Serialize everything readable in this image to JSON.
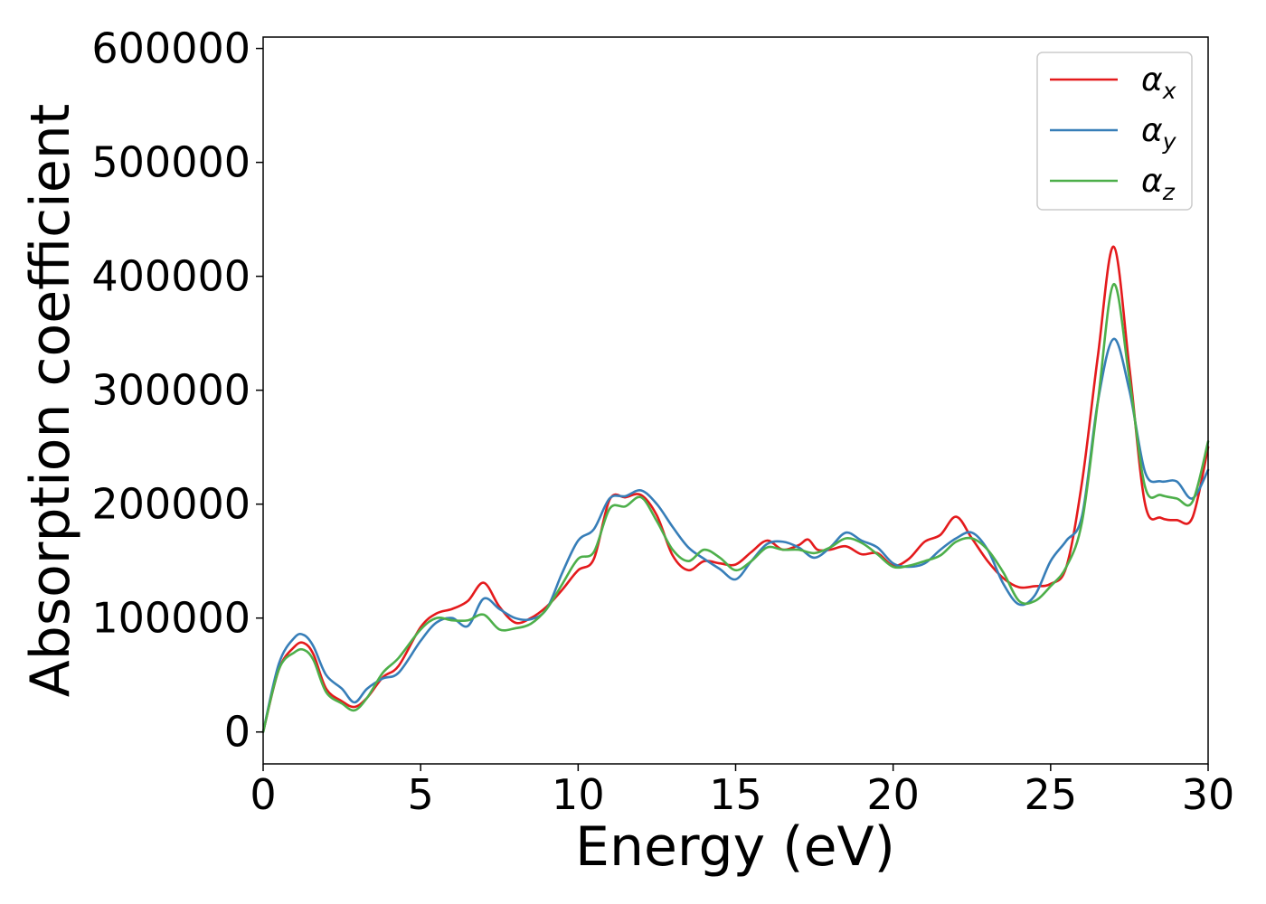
{
  "chart_data": {
    "type": "line",
    "title": "",
    "xlabel": "Energy (eV)",
    "ylabel": "Absorption coefficient",
    "xlim": [
      0,
      30
    ],
    "ylim": [
      -28000,
      610000
    ],
    "xticks": [
      0,
      5,
      10,
      15,
      20,
      25,
      30
    ],
    "xtick_labels": [
      "0",
      "5",
      "10",
      "15",
      "20",
      "25",
      "30"
    ],
    "yticks": [
      0,
      100000,
      200000,
      300000,
      400000,
      500000,
      600000
    ],
    "ytick_labels": [
      "0",
      "100000",
      "200000",
      "300000",
      "400000",
      "500000",
      "600000"
    ],
    "grid": false,
    "legend_position": "top-right",
    "series": [
      {
        "name": "αx",
        "symbol": "α",
        "subscript": "x",
        "color": "#e41a1c",
        "x": [
          0,
          0.5,
          1.0,
          1.3,
          1.6,
          2.0,
          2.5,
          2.9,
          3.3,
          3.8,
          4.3,
          5.0,
          5.5,
          6.0,
          6.5,
          7.0,
          7.5,
          8.0,
          8.5,
          9.0,
          9.5,
          10.0,
          10.5,
          11.0,
          11.5,
          12.0,
          12.5,
          13.0,
          13.5,
          14.0,
          14.5,
          15.0,
          15.5,
          16.0,
          16.5,
          17.0,
          17.3,
          17.6,
          18.0,
          18.5,
          19.0,
          19.5,
          20.0,
          20.5,
          21.0,
          21.5,
          22.0,
          22.5,
          23.0,
          23.5,
          24.0,
          24.5,
          25.0,
          25.5,
          26.0,
          26.5,
          27.0,
          27.5,
          28.0,
          28.5,
          29.0,
          29.5,
          30.0
        ],
        "y": [
          0,
          55000,
          75000,
          78000,
          68000,
          38000,
          27000,
          22000,
          30000,
          48000,
          58000,
          92000,
          104000,
          108000,
          115000,
          131000,
          110000,
          96000,
          100000,
          110000,
          125000,
          142000,
          152000,
          204000,
          206000,
          208000,
          190000,
          155000,
          142000,
          150000,
          148000,
          147000,
          158000,
          168000,
          160000,
          164000,
          169000,
          160000,
          160000,
          163000,
          156000,
          157000,
          146000,
          152000,
          167000,
          173000,
          189000,
          170000,
          150000,
          135000,
          127000,
          128000,
          130000,
          145000,
          220000,
          330000,
          426000,
          320000,
          200000,
          188000,
          186000,
          188000,
          250000
        ]
      },
      {
        "name": "αy",
        "symbol": "α",
        "subscript": "y",
        "color": "#377eb8",
        "x": [
          0,
          0.5,
          1.0,
          1.3,
          1.6,
          2.0,
          2.5,
          2.9,
          3.3,
          3.8,
          4.3,
          5.0,
          5.5,
          6.0,
          6.5,
          7.0,
          7.5,
          8.0,
          8.5,
          9.0,
          9.5,
          10.0,
          10.5,
          11.0,
          11.5,
          12.0,
          12.5,
          13.0,
          13.5,
          14.0,
          14.5,
          15.0,
          15.5,
          16.0,
          16.5,
          17.0,
          17.5,
          18.0,
          18.5,
          19.0,
          19.5,
          20.0,
          20.5,
          21.0,
          21.5,
          22.0,
          22.5,
          23.0,
          23.5,
          24.0,
          24.5,
          25.0,
          25.5,
          26.0,
          26.5,
          27.0,
          27.5,
          28.0,
          28.5,
          29.0,
          29.5,
          30.0
        ],
        "y": [
          0,
          60000,
          83000,
          85000,
          75000,
          50000,
          38000,
          26000,
          38000,
          47000,
          52000,
          80000,
          96000,
          100000,
          93000,
          117000,
          108000,
          100000,
          99000,
          108000,
          140000,
          168000,
          178000,
          205000,
          207000,
          212000,
          200000,
          180000,
          162000,
          152000,
          143000,
          134000,
          150000,
          165000,
          167000,
          162000,
          153000,
          162000,
          175000,
          168000,
          162000,
          148000,
          145000,
          148000,
          160000,
          170000,
          175000,
          160000,
          130000,
          112000,
          120000,
          150000,
          168000,
          190000,
          290000,
          345000,
          300000,
          228000,
          220000,
          220000,
          205000,
          230000
        ]
      },
      {
        "name": "αz",
        "symbol": "α",
        "subscript": "z",
        "color": "#4daf4a",
        "x": [
          0,
          0.5,
          1.0,
          1.3,
          1.6,
          2.0,
          2.5,
          2.9,
          3.3,
          3.8,
          4.3,
          5.0,
          5.5,
          6.0,
          6.5,
          7.0,
          7.5,
          8.0,
          8.5,
          9.0,
          9.5,
          10.0,
          10.5,
          11.0,
          11.5,
          12.0,
          12.5,
          13.0,
          13.5,
          14.0,
          14.5,
          15.0,
          15.5,
          16.0,
          16.5,
          17.0,
          17.5,
          18.0,
          18.5,
          19.0,
          19.5,
          20.0,
          20.5,
          21.0,
          21.5,
          22.0,
          22.5,
          23.0,
          23.5,
          24.0,
          24.5,
          25.0,
          25.5,
          26.0,
          26.5,
          27.0,
          27.5,
          28.0,
          28.5,
          29.0,
          29.5,
          30.0
        ],
        "y": [
          0,
          55000,
          70000,
          72000,
          63000,
          35000,
          25000,
          19000,
          30000,
          52000,
          65000,
          90000,
          100000,
          98000,
          98000,
          103000,
          90000,
          91000,
          95000,
          108000,
          130000,
          152000,
          158000,
          196000,
          198000,
          206000,
          185000,
          160000,
          150000,
          160000,
          153000,
          142000,
          150000,
          162000,
          160000,
          160000,
          157000,
          162000,
          170000,
          166000,
          156000,
          145000,
          146000,
          150000,
          155000,
          167000,
          170000,
          160000,
          140000,
          115000,
          115000,
          128000,
          145000,
          185000,
          290000,
          393000,
          310000,
          215000,
          208000,
          205000,
          202000,
          255000
        ]
      }
    ]
  }
}
